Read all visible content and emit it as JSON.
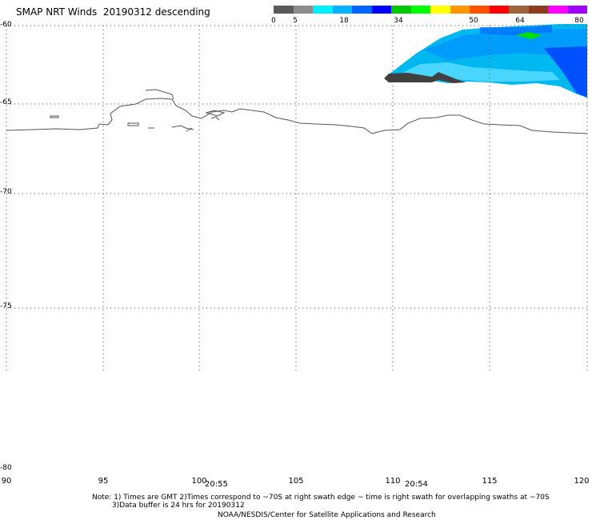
{
  "header": {
    "title": "SMAP NRT Winds  20190312 descending"
  },
  "colorbar": {
    "colors": [
      "#5a5a5a",
      "#8c8c8c",
      "#00f0ff",
      "#00b4ff",
      "#0064ff",
      "#0000ff",
      "#00c800",
      "#00ff00",
      "#ffff00",
      "#ff9600",
      "#ff5000",
      "#ff0000",
      "#a0643c",
      "#8b3c1e",
      "#ff00ff",
      "#a000ff"
    ],
    "tick_labels": [
      "0",
      "5",
      "18",
      "34",
      "50",
      "64",
      "80"
    ]
  },
  "map": {
    "lat_labels": [
      "-60",
      "-65",
      "-70",
      "-75",
      "-80"
    ],
    "lon_labels": [
      "90",
      "95",
      "100",
      "105",
      "110",
      "115",
      "120"
    ],
    "time_labels": [
      "20:55",
      "20:54"
    ]
  },
  "footer": {
    "note_line1": "Note: 1) Times are GMT 2)Times correspond to ~70S at right swath edge ~ time is right swath for overlapping swaths at ~70S",
    "note_line2": "3)Data buffer is 24 hrs for 20190312",
    "credit": "NOAA/NESDIS/Center for Satellite Applications and Research"
  }
}
